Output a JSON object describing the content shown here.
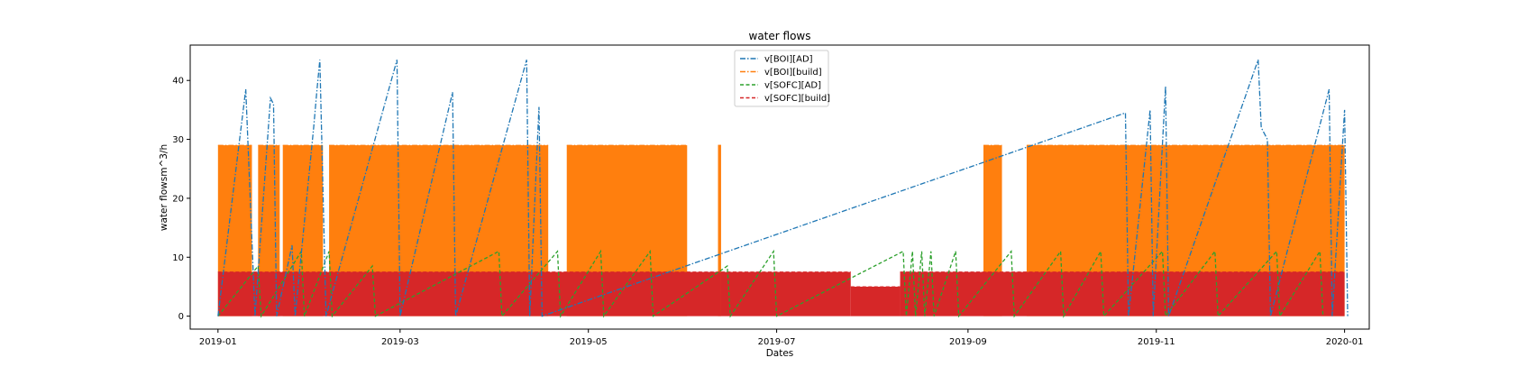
{
  "chart_data": {
    "type": "line",
    "title": "water flows",
    "xlabel": "Dates",
    "ylabel": "water flowsm^3/h",
    "xlim": [
      "2018-12-23",
      "2020-01-09"
    ],
    "ylim": [
      -2.2,
      46
    ],
    "grid": false,
    "legend_position": "top-center",
    "x_ticks": [
      "2019-01",
      "2019-03",
      "2019-05",
      "2019-07",
      "2019-09",
      "2019-11",
      "2020-01"
    ],
    "y_ticks": [
      0,
      10,
      20,
      30,
      40
    ],
    "series": [
      {
        "name": "v[BOI][AD]",
        "color": "#1f77b4",
        "linestyle": "dashdot",
        "points": [
          [
            "2019-01-01",
            0
          ],
          [
            "2019-01-10",
            38.5
          ],
          [
            "2019-01-13",
            0
          ],
          [
            "2019-01-18",
            37
          ],
          [
            "2019-01-19",
            36
          ],
          [
            "2019-01-20",
            0
          ],
          [
            "2019-01-25",
            12
          ],
          [
            "2019-01-26",
            0
          ],
          [
            "2019-02-01",
            32
          ],
          [
            "2019-02-02",
            38
          ],
          [
            "2019-02-03",
            43.5
          ],
          [
            "2019-02-05",
            0
          ],
          [
            "2019-02-28",
            43.5
          ],
          [
            "2019-03-01",
            0
          ],
          [
            "2019-03-18",
            38
          ],
          [
            "2019-03-19",
            0
          ],
          [
            "2019-04-11",
            43.5
          ],
          [
            "2019-04-12",
            0
          ],
          [
            "2019-04-15",
            35.5
          ],
          [
            "2019-04-16",
            0
          ],
          [
            "2019-10-22",
            34.5
          ],
          [
            "2019-10-23",
            0
          ],
          [
            "2019-10-30",
            35
          ],
          [
            "2019-10-31",
            0
          ],
          [
            "2019-11-04",
            39
          ],
          [
            "2019-11-05",
            0
          ],
          [
            "2019-12-04",
            43.5
          ],
          [
            "2019-12-05",
            32
          ],
          [
            "2019-12-07",
            30
          ],
          [
            "2019-12-08",
            0
          ],
          [
            "2019-12-27",
            38.5
          ],
          [
            "2019-12-28",
            0
          ],
          [
            "2020-01-01",
            35
          ],
          [
            "2020-01-02",
            0
          ]
        ]
      },
      {
        "name": "v[BOI][build]",
        "color": "#ff7f0e",
        "linestyle": "dashdot",
        "blocks": [
          [
            "2019-01-01",
            "2019-01-12",
            29
          ],
          [
            "2019-01-14",
            "2019-01-21",
            29
          ],
          [
            "2019-01-22",
            "2019-02-04",
            29
          ],
          [
            "2019-02-06",
            "2019-04-18",
            29
          ],
          [
            "2019-04-24",
            "2019-06-02",
            29
          ],
          [
            "2019-06-12",
            "2019-06-13",
            29
          ],
          [
            "2019-09-06",
            "2019-09-12",
            29
          ],
          [
            "2019-09-20",
            "2020-01-01",
            29
          ]
        ]
      },
      {
        "name": "v[SOFC][AD]",
        "color": "#2ca02c",
        "linestyle": "dashed",
        "points": [
          [
            "2019-01-01",
            0
          ],
          [
            "2019-01-14",
            8.5
          ],
          [
            "2019-01-15",
            0
          ],
          [
            "2019-01-28",
            11
          ],
          [
            "2019-01-29",
            0
          ],
          [
            "2019-02-06",
            11
          ],
          [
            "2019-02-07",
            0
          ],
          [
            "2019-02-20",
            8.5
          ],
          [
            "2019-02-21",
            0
          ],
          [
            "2019-04-02",
            11
          ],
          [
            "2019-04-03",
            0
          ],
          [
            "2019-04-21",
            11
          ],
          [
            "2019-04-22",
            0
          ],
          [
            "2019-05-05",
            11
          ],
          [
            "2019-05-06",
            0
          ],
          [
            "2019-05-21",
            11
          ],
          [
            "2019-05-22",
            0
          ],
          [
            "2019-06-15",
            8.5
          ],
          [
            "2019-06-16",
            0
          ],
          [
            "2019-06-30",
            11
          ],
          [
            "2019-07-01",
            0
          ],
          [
            "2019-08-11",
            11
          ],
          [
            "2019-08-12",
            0
          ],
          [
            "2019-08-14",
            11
          ],
          [
            "2019-08-15",
            0
          ],
          [
            "2019-08-17",
            11
          ],
          [
            "2019-08-18",
            0
          ],
          [
            "2019-08-20",
            11
          ],
          [
            "2019-08-21",
            0
          ],
          [
            "2019-08-28",
            11
          ],
          [
            "2019-08-29",
            0
          ],
          [
            "2019-09-15",
            11
          ],
          [
            "2019-09-16",
            0
          ],
          [
            "2019-10-01",
            11
          ],
          [
            "2019-10-02",
            0
          ],
          [
            "2019-10-14",
            11
          ],
          [
            "2019-10-15",
            0
          ],
          [
            "2019-11-03",
            11
          ],
          [
            "2019-11-04",
            0
          ],
          [
            "2019-11-20",
            11
          ],
          [
            "2019-11-21",
            0
          ],
          [
            "2019-12-10",
            11
          ],
          [
            "2019-12-11",
            0
          ],
          [
            "2019-12-24",
            11
          ],
          [
            "2019-12-25",
            0
          ]
        ]
      },
      {
        "name": "v[SOFC][build]",
        "color": "#d62728",
        "linestyle": "dashed",
        "blocks": [
          [
            "2019-01-01",
            "2019-06-13",
            7.5
          ],
          [
            "2019-06-13",
            "2019-07-25",
            7.5
          ],
          [
            "2019-07-25",
            "2019-08-10",
            5
          ],
          [
            "2019-08-10",
            "2020-01-01",
            7.5
          ]
        ]
      }
    ]
  }
}
